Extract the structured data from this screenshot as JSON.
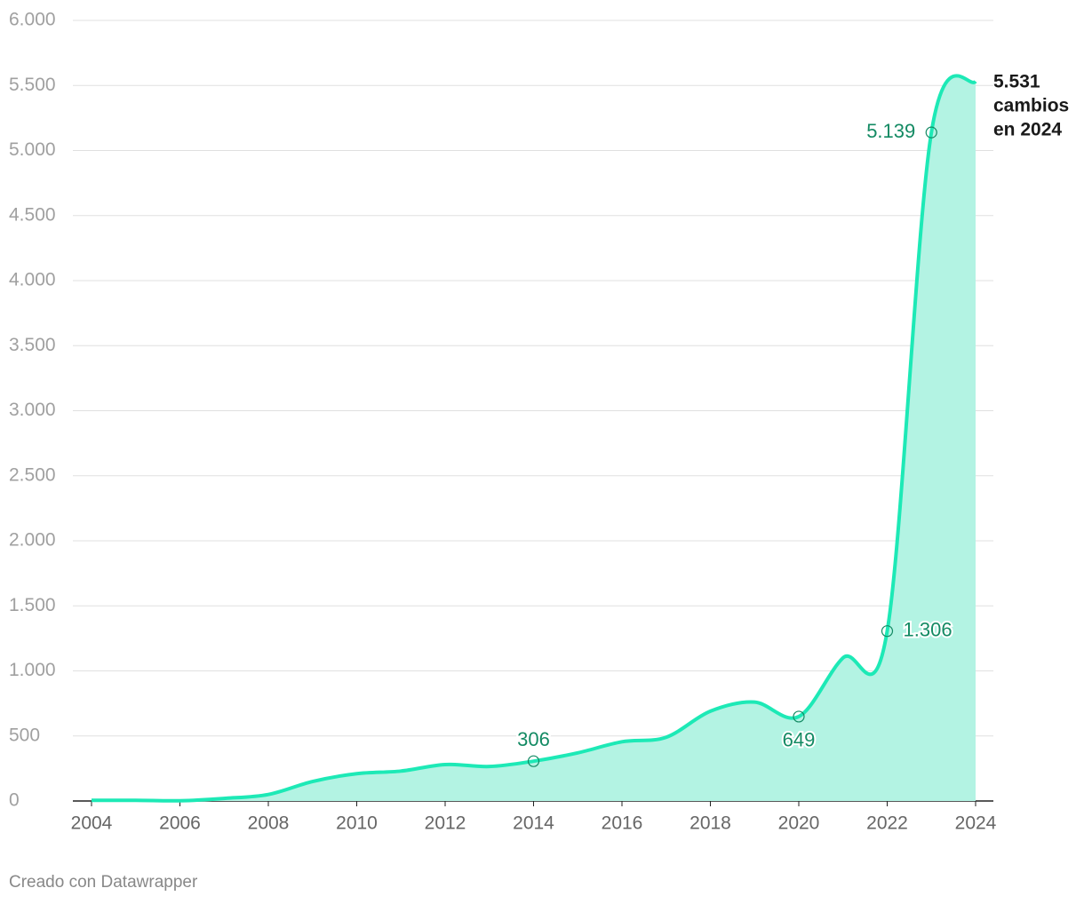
{
  "chart_data": {
    "type": "area",
    "x": [
      2004,
      2005,
      2006,
      2007,
      2008,
      2009,
      2010,
      2011,
      2012,
      2013,
      2014,
      2015,
      2016,
      2017,
      2018,
      2019,
      2020,
      2021,
      2022,
      2023,
      2024
    ],
    "series": [
      {
        "color": "#1de9b6",
        "fill": "#b3f3e3",
        "values": [
          5,
          5,
          2,
          20,
          50,
          150,
          210,
          230,
          280,
          265,
          306,
          370,
          455,
          490,
          690,
          760,
          649,
          1100,
          1306,
          5139,
          5531
        ],
        "value_labels": [
          null,
          null,
          null,
          null,
          null,
          null,
          null,
          null,
          null,
          null,
          "306",
          null,
          null,
          null,
          null,
          null,
          "649",
          null,
          "1.306",
          "5.139",
          null
        ]
      }
    ],
    "end_annotation": [
      "5.531",
      "cambios",
      "en 2024"
    ],
    "xlim": [
      2004,
      2024
    ],
    "xticks": [
      2004,
      2006,
      2008,
      2010,
      2012,
      2014,
      2016,
      2018,
      2020,
      2022,
      2024
    ],
    "ylim": [
      0,
      6000
    ],
    "yticks": [
      0,
      500,
      {
        "value": 1000,
        "label": "1.000"
      },
      {
        "value": 1500,
        "label": "1.500"
      },
      {
        "value": 2000,
        "label": "2.000"
      },
      {
        "value": 2500,
        "label": "2.500"
      },
      {
        "value": 3000,
        "label": "3.000"
      },
      {
        "value": 3500,
        "label": "3.500"
      },
      {
        "value": 4000,
        "label": "4.000"
      },
      {
        "value": 4500,
        "label": "4.500"
      },
      {
        "value": 5000,
        "label": "5.000"
      },
      {
        "value": 5500,
        "label": "5.500"
      },
      {
        "value": 6000,
        "label": "6.000"
      }
    ],
    "grid": true,
    "annotation_color": "#138a63",
    "credit": "Creado con Datawrapper"
  }
}
